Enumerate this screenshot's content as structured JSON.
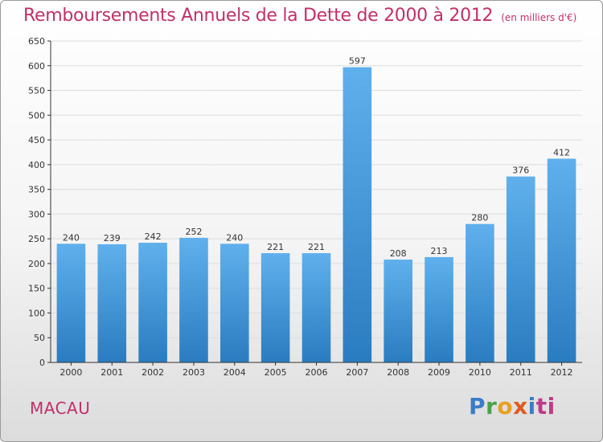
{
  "header": {
    "title": "Remboursements Annuels de la Dette de 2000 à 2012",
    "unit": "(en milliers d'€)"
  },
  "footer": {
    "commune": "MACAU",
    "logo": {
      "p1": "P",
      "p2": "r",
      "p3": "o",
      "p4": "x",
      "p5": "i",
      "p6": "ti"
    }
  },
  "colors": {
    "title": "#c0306a",
    "bar_top": "#5fb0ec",
    "bar_bottom": "#2a7cc0",
    "grid": "#dddddd",
    "axis": "#333333"
  },
  "chart_data": {
    "type": "bar",
    "title": "Remboursements Annuels de la Dette de 2000 à 2012",
    "xlabel": "",
    "ylabel": "",
    "categories": [
      "2000",
      "2001",
      "2002",
      "2003",
      "2004",
      "2005",
      "2006",
      "2007",
      "2008",
      "2009",
      "2010",
      "2011",
      "2012"
    ],
    "values": [
      240,
      239,
      242,
      252,
      240,
      221,
      221,
      597,
      208,
      213,
      280,
      376,
      412
    ],
    "ylim": [
      0,
      650
    ],
    "yticks": [
      0,
      50,
      100,
      150,
      200,
      250,
      300,
      350,
      400,
      450,
      500,
      550,
      600,
      650
    ],
    "grid": true,
    "legend": "none"
  }
}
